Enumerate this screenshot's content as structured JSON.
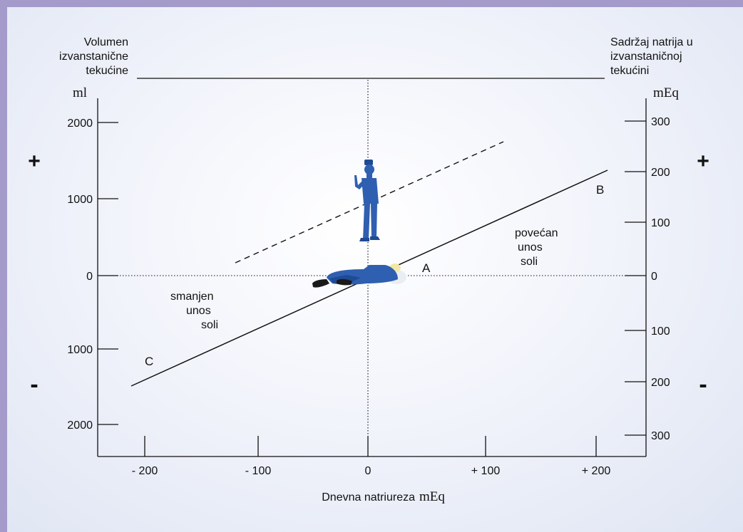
{
  "header": {
    "left_title": [
      "Volumen",
      "izvanstanične",
      "tekućine"
    ],
    "right_title": [
      "Sadržaj natrija u",
      "izvanstaničnoj",
      "tekućini"
    ]
  },
  "axes": {
    "left_unit": "ml",
    "right_unit": "mEq",
    "x_title": "Dnevna natriureza",
    "x_unit": "mEq",
    "left_ticks": [
      {
        "label": "2000",
        "value": 2000
      },
      {
        "label": "1000",
        "value": 1000
      },
      {
        "label": "0",
        "value": 0
      },
      {
        "label": "1000",
        "value": -1000
      },
      {
        "label": "2000",
        "value": -2000
      }
    ],
    "right_ticks": [
      {
        "label": "300",
        "value": 300
      },
      {
        "label": "200",
        "value": 200
      },
      {
        "label": "100",
        "value": 100
      },
      {
        "label": "0",
        "value": 0
      },
      {
        "label": "100",
        "value": -100
      },
      {
        "label": "200",
        "value": -200
      },
      {
        "label": "300",
        "value": -300
      }
    ],
    "x_ticks": [
      {
        "label": "- 200",
        "value": -200
      },
      {
        "label": "- 100",
        "value": -100
      },
      {
        "label": "0",
        "value": 0
      },
      {
        "label": "+ 100",
        "value": 100
      },
      {
        "label": "+ 200",
        "value": 200
      }
    ]
  },
  "signs": {
    "plus": "+",
    "minus": "-"
  },
  "labels": {
    "A": "A",
    "B": "B",
    "C": "C",
    "increased": [
      "povećan",
      "unos",
      "soli"
    ],
    "decreased": [
      "smanjen",
      "unos",
      "soli"
    ]
  },
  "colors": {
    "figure": "#2f5fb0",
    "figure_dark": "#1f4a94",
    "shoes": "#1a1a1a",
    "border": "#a59bcb"
  },
  "icons": [
    "standing-person-icon",
    "lying-person-icon"
  ]
}
